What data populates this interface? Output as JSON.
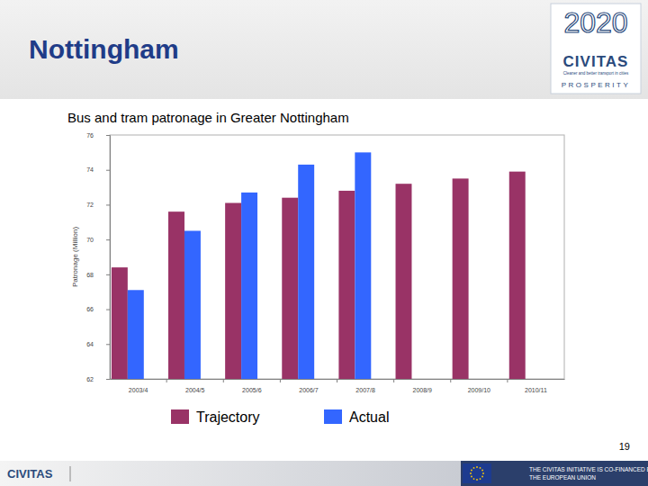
{
  "chart_data": {
    "type": "bar",
    "title": "Bus and tram patronage in Greater Nottingham",
    "y_label": "Patronage (Million)",
    "categories": [
      "2003/4",
      "2004/5",
      "2005/6",
      "2006/7",
      "2007/8",
      "2008/9",
      "2009/10",
      "2010/11"
    ],
    "series": [
      {
        "name": "Trajectory",
        "color": "#993366",
        "values": [
          68.4,
          71.6,
          72.1,
          72.4,
          72.8,
          73.2,
          73.5,
          73.9
        ]
      },
      {
        "name": "Actual",
        "color": "#3366ff",
        "values": [
          67.1,
          70.5,
          72.7,
          74.3,
          75.0,
          null,
          null,
          null
        ]
      }
    ],
    "ylim": [
      62,
      76
    ],
    "yticks": [
      62,
      64,
      66,
      68,
      70,
      72,
      74,
      76
    ],
    "grid": false,
    "legend": "bottom"
  },
  "slide": {
    "heading": "Nottingham",
    "logo": {
      "year": "2020",
      "name": "CIVITAS",
      "tagline": "Cleaner and better transport in cities",
      "project": "PROSPERITY"
    },
    "page_number": 19,
    "footer": {
      "brand": "CIVITAS",
      "eu_text": [
        "THE CIVITAS INITIATIVE IS CO-FINANCED BY",
        "THE EUROPEAN UNION"
      ]
    }
  }
}
